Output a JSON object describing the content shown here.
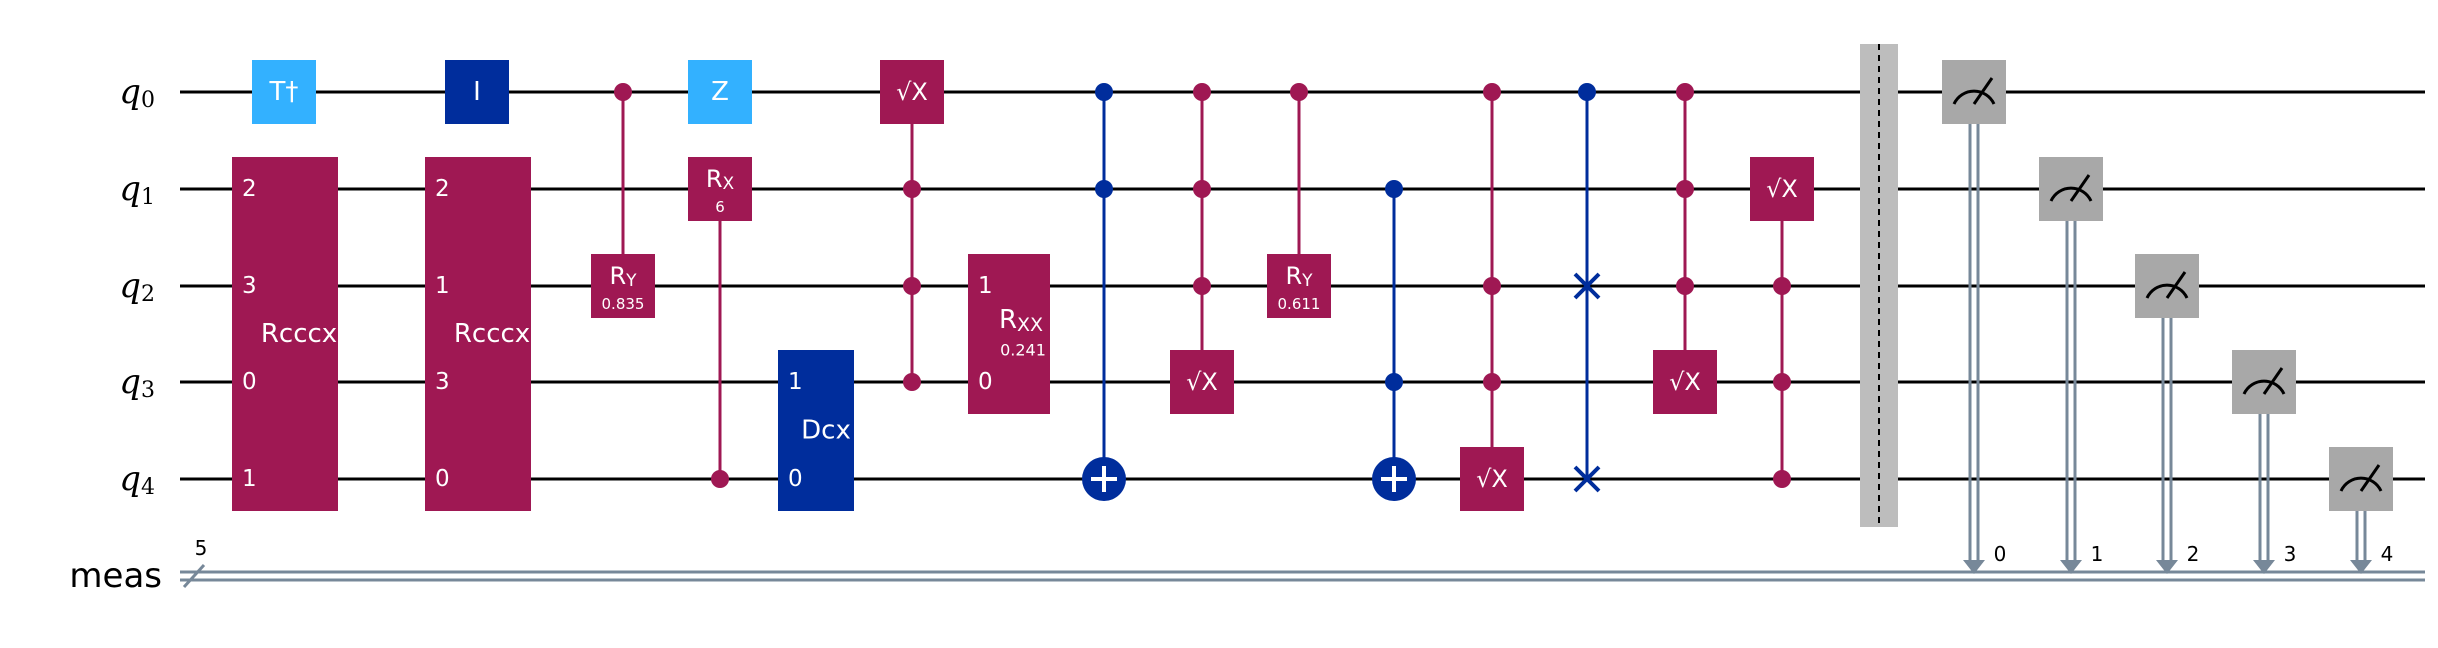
{
  "qubit_labels": [
    {
      "base": "q",
      "sub": "0"
    },
    {
      "base": "q",
      "sub": "1"
    },
    {
      "base": "q",
      "sub": "2"
    },
    {
      "base": "q",
      "sub": "3"
    },
    {
      "base": "q",
      "sub": "4"
    }
  ],
  "classical_register": {
    "label": "meas",
    "size": "5",
    "bits": [
      "0",
      "1",
      "2",
      "3",
      "4"
    ]
  },
  "colors": {
    "wire": "#000000",
    "classical_wire": "#778899",
    "pauli": "#33b1ff",
    "identity": "#002d9c",
    "magenta": "#9f1853",
    "blue": "#002d9c",
    "measure": "#a8a8a8",
    "barrier": "#bdbdbd",
    "text_light": "#ffffff",
    "text_dark": "#000000"
  },
  "gates": [
    {
      "name": "tdg-gate",
      "kind": "single",
      "label": "T†",
      "qubit": 0,
      "style": "pauli"
    },
    {
      "name": "rcccx-gate-1",
      "kind": "multi",
      "label": "Rcccx",
      "qubits": [
        1,
        2,
        3,
        4
      ],
      "pins": [
        "2",
        "3",
        "0",
        "1"
      ],
      "style": "magenta"
    },
    {
      "name": "id-gate",
      "kind": "single",
      "label": "I",
      "qubit": 0,
      "style": "identity"
    },
    {
      "name": "rcccx-gate-2",
      "kind": "multi",
      "label": "Rcccx",
      "qubits": [
        1,
        2,
        3,
        4
      ],
      "pins": [
        "2",
        "1",
        "3",
        "0"
      ],
      "style": "magenta"
    },
    {
      "name": "cry-gate-1",
      "kind": "controlled",
      "label": "RY",
      "param": "0.835",
      "controls": [
        0
      ],
      "target": 2,
      "style": "magenta"
    },
    {
      "name": "z-gate",
      "kind": "single",
      "label": "Z",
      "qubit": 0,
      "style": "pauli"
    },
    {
      "name": "crx-gate",
      "kind": "controlled",
      "label": "RX",
      "param": "6",
      "controls": [
        4
      ],
      "target": 1,
      "style": "magenta"
    },
    {
      "name": "dcx-gate",
      "kind": "multi",
      "label": "Dcx",
      "qubits": [
        3,
        4
      ],
      "pins": [
        "1",
        "0"
      ],
      "style": "blue"
    },
    {
      "name": "mcsx-gate-1",
      "kind": "controlled",
      "label": "√X",
      "controls": [
        1,
        2,
        3
      ],
      "target": 0,
      "style": "magenta"
    },
    {
      "name": "rxx-gate",
      "kind": "multi",
      "label": "RXX",
      "param": "0.241",
      "qubits": [
        2,
        3
      ],
      "pins": [
        "1",
        "0"
      ],
      "style": "magenta"
    },
    {
      "name": "ccx-gate-1",
      "kind": "cnot",
      "controls": [
        0,
        1
      ],
      "target": 4,
      "style": "blue"
    },
    {
      "name": "mcsx-gate-2",
      "kind": "controlled",
      "label": "√X",
      "controls": [
        0,
        1,
        2
      ],
      "target": 3,
      "style": "magenta"
    },
    {
      "name": "cry-gate-2",
      "kind": "controlled",
      "label": "RY",
      "param": "0.611",
      "controls": [
        0
      ],
      "target": 2,
      "style": "magenta"
    },
    {
      "name": "ccx-gate-2",
      "kind": "cnot",
      "controls": [
        1,
        3
      ],
      "target": 4,
      "style": "blue"
    },
    {
      "name": "mcsx-gate-3",
      "kind": "controlled",
      "label": "√X",
      "controls": [
        0,
        2,
        3
      ],
      "target": 4,
      "style": "magenta"
    },
    {
      "name": "cswap-gate",
      "kind": "cswap",
      "controls": [
        0
      ],
      "targets": [
        2,
        4
      ],
      "style": "blue"
    },
    {
      "name": "mcsx-gate-4",
      "kind": "controlled",
      "label": "√X",
      "controls": [
        0,
        1,
        2
      ],
      "target": 3,
      "style": "magenta"
    },
    {
      "name": "mcsx-gate-5",
      "kind": "controlled",
      "label": "√X",
      "controls": [
        2,
        3,
        4
      ],
      "target": 1,
      "style": "magenta"
    },
    {
      "name": "barrier",
      "kind": "barrier",
      "qubits": [
        0,
        1,
        2,
        3,
        4
      ]
    },
    {
      "name": "measure-q0",
      "kind": "measure",
      "qubit": 0,
      "cbit": 0
    },
    {
      "name": "measure-q1",
      "kind": "measure",
      "qubit": 1,
      "cbit": 1
    },
    {
      "name": "measure-q2",
      "kind": "measure",
      "qubit": 2,
      "cbit": 2
    },
    {
      "name": "measure-q3",
      "kind": "measure",
      "qubit": 3,
      "cbit": 3
    },
    {
      "name": "measure-q4",
      "kind": "measure",
      "qubit": 4,
      "cbit": 4
    }
  ]
}
